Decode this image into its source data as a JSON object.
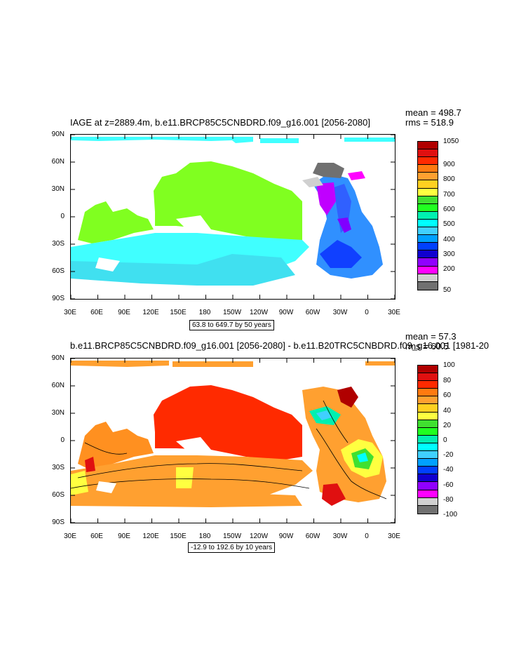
{
  "panel1": {
    "title": "IAGE at z=2889.4m, b.e11.BRCP85C5CNBDRD.f09_g16.001 [2056-2080]",
    "mean": "mean = 498.7",
    "rms": "rms = 518.9",
    "range": "63.8 to 649.7 by 50 years",
    "colorbar_labels": [
      "1050",
      "900",
      "800",
      "700",
      "600",
      "500",
      "400",
      "300",
      "200",
      "50"
    ],
    "colorbar_colors": [
      "#b00000",
      "#e01010",
      "#ff2a00",
      "#ff7a10",
      "#ffa030",
      "#ffd020",
      "#ffff40",
      "#40e030",
      "#20ff20",
      "#00f0b0",
      "#00ffff",
      "#40d0ff",
      "#00a0ff",
      "#0040ff",
      "#1000d0",
      "#9000ff",
      "#ff00ff",
      "#d0d0d0",
      "#707070"
    ]
  },
  "panel2": {
    "title": "b.e11.BRCP85C5CNBDRD.f09_g16.001 [2056-2080] - b.e11.B20TRC5CNBDRD.f09_g16.001 [1981-20",
    "mean": "mean = 57.3",
    "rms": "rms = 60.5",
    "range": "-12.9 to 192.6 by 10 years",
    "colorbar_labels": [
      "100",
      "80",
      "60",
      "40",
      "20",
      "0",
      "-20",
      "-40",
      "-60",
      "-80",
      "-100"
    ],
    "colorbar_colors": [
      "#b00000",
      "#e01010",
      "#ff2a00",
      "#ff7a10",
      "#ffa030",
      "#ffd020",
      "#ffff40",
      "#40e030",
      "#20ff20",
      "#00f0b0",
      "#00ffff",
      "#40d0ff",
      "#00a0ff",
      "#0040ff",
      "#1000d0",
      "#9000ff",
      "#ff00ff",
      "#d0d0d0",
      "#707070"
    ]
  },
  "axes": {
    "lat_labels": [
      "90N",
      "60N",
      "30N",
      "0",
      "30S",
      "60S",
      "90S"
    ],
    "lon_labels": [
      "30E",
      "60E",
      "90E",
      "120E",
      "150E",
      "180",
      "150W",
      "120W",
      "90W",
      "60W",
      "30W",
      "0",
      "30E"
    ]
  }
}
